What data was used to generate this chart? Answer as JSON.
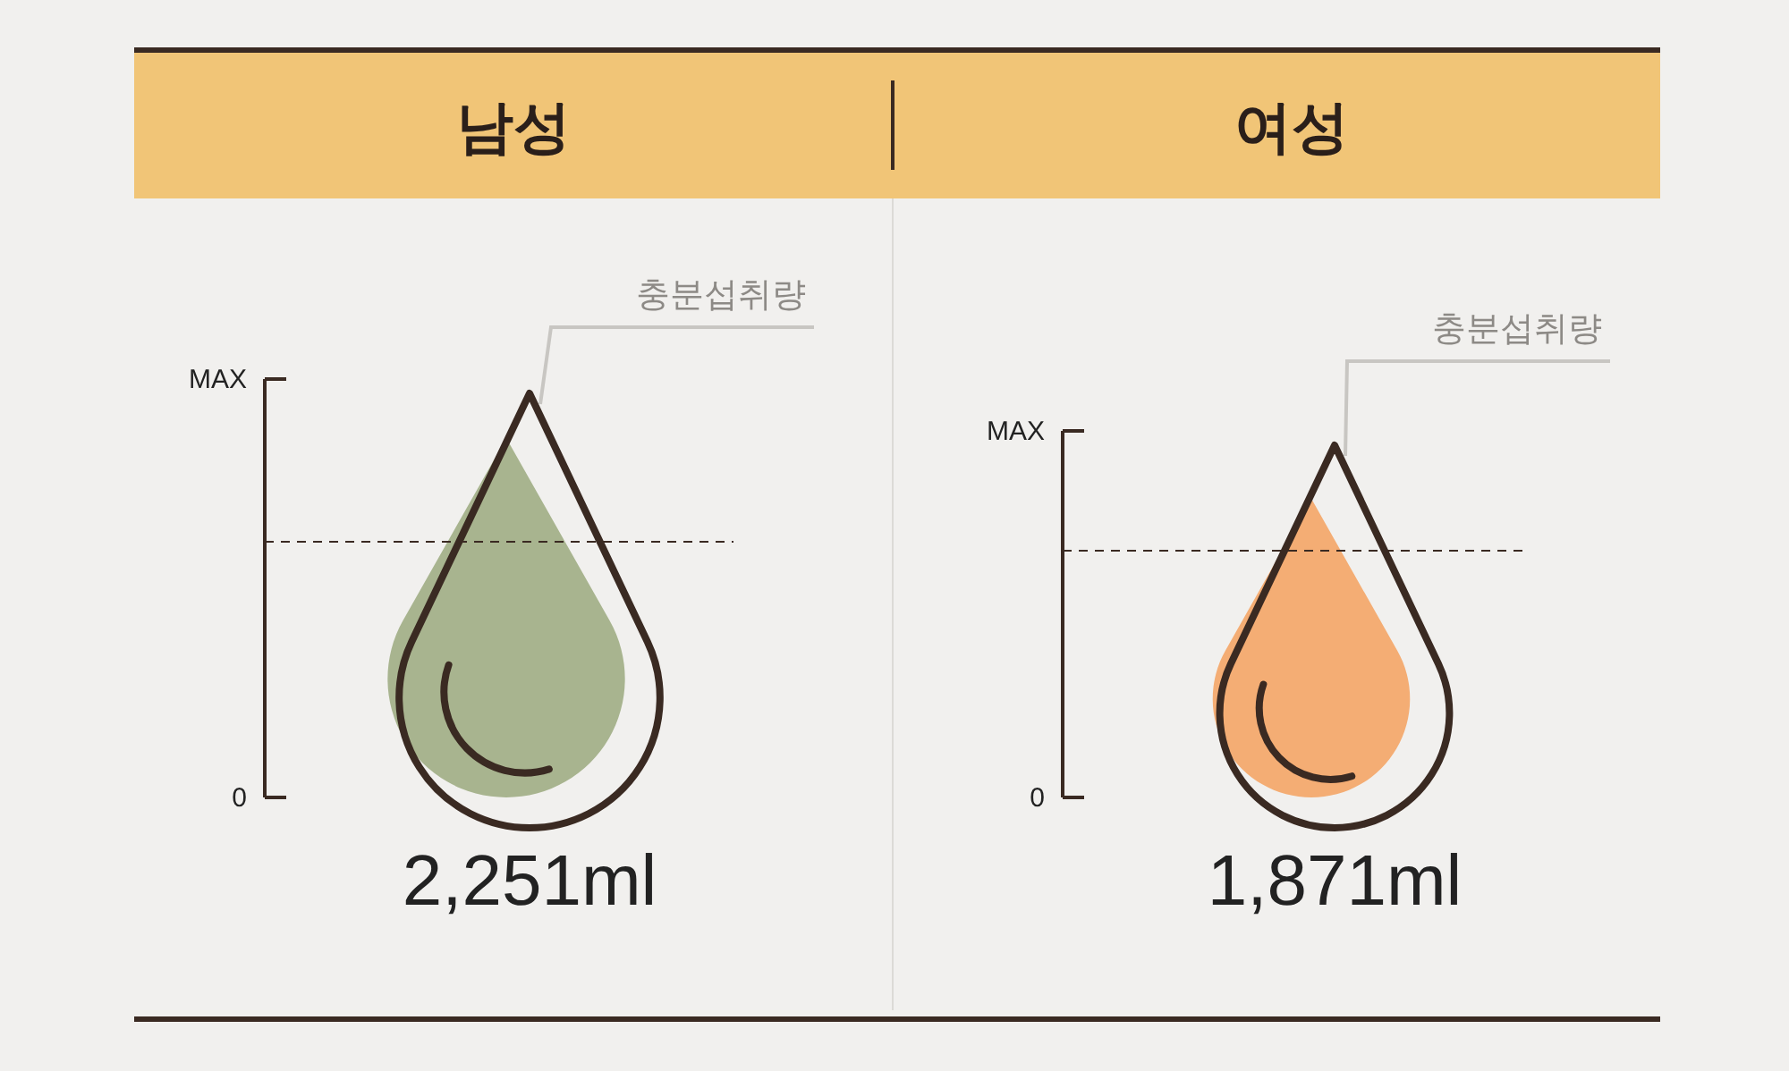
{
  "chart_data": {
    "type": "other",
    "categories": [
      "남성",
      "여성"
    ],
    "values": [
      2251,
      1871
    ],
    "value_labels": [
      "2,251ml",
      "1,871ml"
    ],
    "annotations": [
      "MAX",
      "0",
      "충분섭취량"
    ]
  }
}
